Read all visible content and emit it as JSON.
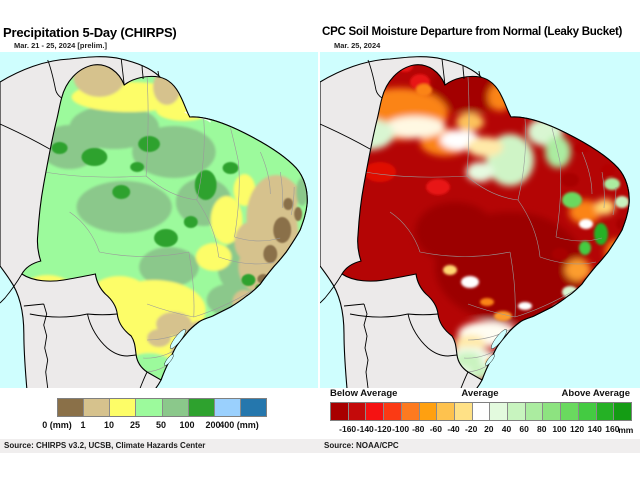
{
  "left_panel": {
    "title": "Precipitation 5-Day (CHIRPS)",
    "subtitle": "Mar. 21 - 25, 2024 [prelim.]",
    "source": "Source: CHIRPS v3.2, UCSB, Climate Hazards Center",
    "legend": {
      "unit": "mm",
      "tick_labels": [
        "0 (mm)",
        "1",
        "10",
        "25",
        "50",
        "100",
        "200",
        "400 (mm)"
      ],
      "colors": [
        "#8a7048",
        "#d6c28d",
        "#fdfd67",
        "#9cfa9c",
        "#8bc88b",
        "#2ea22e",
        "#9ad0fd",
        "#2577ad"
      ]
    }
  },
  "right_panel": {
    "title": "CPC Soil Moisture Departure from Normal (Leaky Bucket)",
    "subtitle": "Mar. 25, 2024",
    "source": "Source: NOAA/CPC",
    "legend": {
      "below_label": "Below Average",
      "average_label": "Average",
      "above_label": "Above Average",
      "unit_suffix": "mm",
      "tick_labels": [
        "-160",
        "-140",
        "-120",
        "-100",
        "-80",
        "-60",
        "-40",
        "-20",
        "20",
        "40",
        "60",
        "80",
        "100",
        "120",
        "140",
        "160"
      ],
      "colors": [
        "#a80000",
        "#c40a0a",
        "#f51212",
        "#fb3a14",
        "#fd7a20",
        "#ffa010",
        "#fec24e",
        "#ffe186",
        "#ffffff",
        "#e3fade",
        "#c8f4bf",
        "#abeca0",
        "#8de380",
        "#6ad95f",
        "#44cb42",
        "#25b125",
        "#149c14"
      ]
    }
  },
  "map_colors": {
    "ocean": "#cffefe",
    "land_outside": "#eceaea",
    "country_border": "#000000",
    "state_border": "#9a9a9a"
  }
}
